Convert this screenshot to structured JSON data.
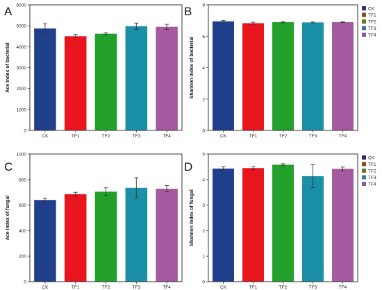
{
  "colors": {
    "CK": "#1f3f8a",
    "TF1": "#e8151c",
    "TF2": "#22a02a",
    "TF3": "#1b8fa6",
    "TF4": "#a35a9e"
  },
  "legend_colors": {
    "CK": "#2b2a80",
    "TF1": "#8a4a20",
    "TF2": "#6a7a1a",
    "TF3": "#3a7a9a",
    "TF4": "#8a5aa0"
  },
  "chart_data": [
    {
      "type": "bar",
      "panel_label": "A",
      "ylabel": "Ace index of bacterial",
      "categories": [
        "CK",
        "TF1",
        "TF2",
        "TF3",
        "TF4"
      ],
      "values": [
        4870,
        4500,
        4620,
        4980,
        4950
      ],
      "errors": [
        230,
        80,
        50,
        150,
        120
      ],
      "ylim": [
        0,
        6000
      ],
      "yticks": [
        0,
        1000,
        2000,
        3000,
        4000,
        5000,
        6000
      ],
      "legend": null
    },
    {
      "type": "bar",
      "panel_label": "B",
      "ylabel": "Shannon index of bacterial",
      "categories": [
        "CK",
        "TF1",
        "TF2",
        "TF3",
        "TF4"
      ],
      "values": [
        6.95,
        6.83,
        6.9,
        6.88,
        6.9
      ],
      "errors": [
        0.05,
        0.06,
        0.05,
        0.03,
        0.03
      ],
      "ylim": [
        0,
        8
      ],
      "yticks": [
        0,
        2,
        4,
        6,
        8
      ],
      "legend": [
        "CK",
        "TF1",
        "TF2",
        "TF3",
        "TF4"
      ]
    },
    {
      "type": "bar",
      "panel_label": "C",
      "ylabel": "Ace index of fungal",
      "categories": [
        "CK",
        "TF1",
        "TF2",
        "TF3",
        "TF4"
      ],
      "values": [
        640,
        685,
        705,
        735,
        728
      ],
      "errors": [
        15,
        15,
        30,
        80,
        25
      ],
      "ylim": [
        0,
        1000
      ],
      "yticks": [
        0,
        200,
        400,
        600,
        800,
        1000
      ],
      "legend": null
    },
    {
      "type": "bar",
      "panel_label": "D",
      "ylabel": "Shannon index of fungal",
      "categories": [
        "CK",
        "TF1",
        "TF2",
        "TF3",
        "TF4"
      ],
      "values": [
        4.43,
        4.45,
        4.58,
        4.13,
        4.42
      ],
      "errors": [
        0.07,
        0.05,
        0.04,
        0.45,
        0.07
      ],
      "ylim": [
        0,
        5
      ],
      "yticks": [
        0,
        1,
        2,
        3,
        4,
        5
      ],
      "legend": [
        "CK",
        "TF1",
        "TF2",
        "TF3",
        "TF4"
      ]
    }
  ]
}
